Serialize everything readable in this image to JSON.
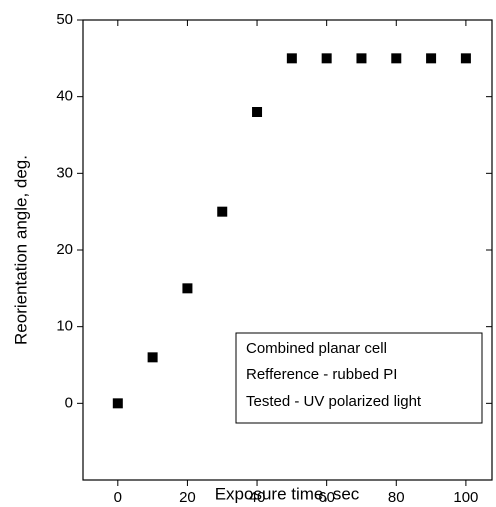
{
  "chart_data": {
    "type": "scatter",
    "x_label": "Exposure time, sec",
    "y_label": "Reorientation angle, deg.",
    "x": [
      0,
      10,
      20,
      30,
      40,
      50,
      60,
      70,
      80,
      90,
      100
    ],
    "values": [
      0,
      6,
      15,
      25,
      38,
      45,
      45,
      45,
      45,
      45,
      45
    ],
    "color": "#000000",
    "xlim": [
      -10,
      107.5
    ],
    "xticks": [
      0,
      20,
      40,
      60,
      80,
      100
    ],
    "ylim": [
      -10,
      50
    ],
    "yticks": [
      0,
      10,
      20,
      30,
      40,
      50
    ],
    "annotation": [
      "Combined planar cell",
      "Refference - rubbed PI",
      "Tested - UV polarized light"
    ]
  }
}
